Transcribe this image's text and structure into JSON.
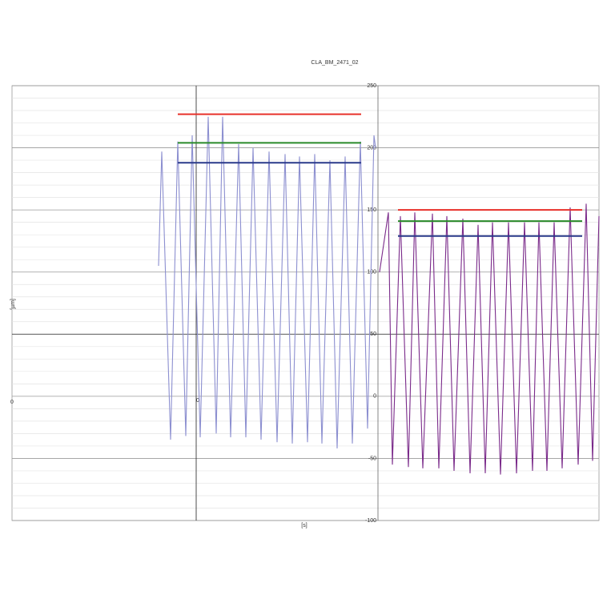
{
  "chart_data": {
    "type": "line",
    "title": "CLA_BM_2471_02",
    "x_label": "[s]",
    "y_label": "[µm]",
    "annotations": [
      "0"
    ],
    "xlim": [
      -2.3,
      5.03
    ],
    "ylim": [
      -100,
      250
    ],
    "xticks": [
      0
    ],
    "yticks": [
      250,
      200,
      150,
      100,
      50,
      0,
      -50,
      -100
    ],
    "grid": true,
    "crosshair": {
      "x": 0,
      "y": 50
    },
    "series": [
      {
        "color": "#8c8fd0",
        "x": [
          -0.47,
          -0.43,
          -0.32,
          -0.23,
          -0.13,
          -0.05,
          0.05,
          0.15,
          0.25,
          0.33,
          0.43,
          0.53,
          0.62,
          0.71,
          0.81,
          0.91,
          1.01,
          1.11,
          1.2,
          1.29,
          1.39,
          1.48,
          1.57,
          1.67,
          1.76,
          1.86,
          1.95,
          2.05,
          2.14,
          2.22,
          2.24
        ],
        "values": [
          105,
          197,
          -35,
          205,
          -32,
          210,
          -33,
          225,
          -30,
          225,
          -33,
          203,
          -33,
          200,
          -35,
          197,
          -37,
          195,
          -38,
          193,
          -37,
          195,
          -38,
          190,
          -42,
          193,
          -38,
          205,
          -26,
          210,
          200
        ]
      },
      {
        "color": "#7a2a8a",
        "x": [
          2.29,
          2.4,
          2.45,
          2.55,
          2.65,
          2.73,
          2.83,
          2.95,
          3.03,
          3.13,
          3.22,
          3.33,
          3.42,
          3.52,
          3.61,
          3.7,
          3.8,
          3.9,
          4.0,
          4.1,
          4.2,
          4.28,
          4.38,
          4.47,
          4.57,
          4.67,
          4.77,
          4.87,
          4.95,
          5.03
        ],
        "values": [
          100,
          148,
          -55,
          145,
          -57,
          148,
          -58,
          147,
          -58,
          145,
          -60,
          143,
          -62,
          138,
          -62,
          140,
          -63,
          140,
          -62,
          140,
          -60,
          140,
          -60,
          140,
          -58,
          152,
          -55,
          155,
          -52,
          145
        ]
      }
    ],
    "limit_lines": [
      {
        "color": "#e8302a",
        "x": [
          -0.23,
          2.06
        ],
        "value": 227
      },
      {
        "color": "#2a8a2a",
        "x": [
          -0.23,
          2.06
        ],
        "value": 204
      },
      {
        "color": "#2a3a8a",
        "x": [
          -0.23,
          2.06
        ],
        "value": 188
      },
      {
        "color": "#e8302a",
        "x": [
          2.52,
          4.82
        ],
        "value": 150
      },
      {
        "color": "#2a8a2a",
        "x": [
          2.52,
          4.82
        ],
        "value": 141
      },
      {
        "color": "#2a3a8a",
        "x": [
          2.52,
          4.82
        ],
        "value": 129
      }
    ]
  }
}
